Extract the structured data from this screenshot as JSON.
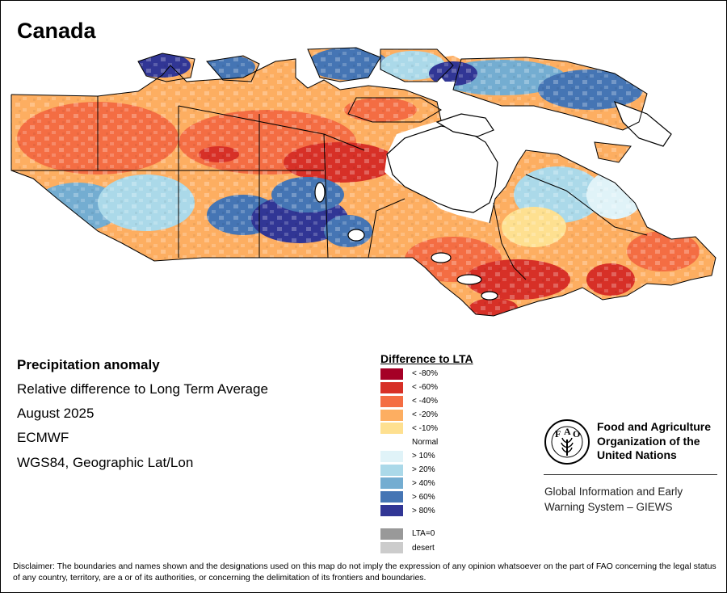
{
  "title": "Canada",
  "info": {
    "heading": "Precipitation anomaly",
    "subtitle": "Relative difference to Long Term Average",
    "date": "August 2025",
    "model": "ECMWF",
    "projection": "WGS84, Geographic Lat/Lon"
  },
  "legend": {
    "title": "Difference to LTA",
    "items": [
      {
        "label": "< -80%",
        "color": "#a50026"
      },
      {
        "label": "< -60%",
        "color": "#d73027"
      },
      {
        "label": "< -40%",
        "color": "#f46d43"
      },
      {
        "label": "< -20%",
        "color": "#fdae61"
      },
      {
        "label": "< -10%",
        "color": "#fee090"
      },
      {
        "label": "Normal",
        "color": "#ffffff"
      },
      {
        "label": "> 10%",
        "color": "#e0f3f8"
      },
      {
        "label": "> 20%",
        "color": "#abd9e9"
      },
      {
        "label": "> 40%",
        "color": "#74add1"
      },
      {
        "label": "> 60%",
        "color": "#4575b4"
      },
      {
        "label": "> 80%",
        "color": "#313695"
      },
      {
        "label": "LTA=0",
        "color": "#999999"
      },
      {
        "label": "desert",
        "color": "#cccccc"
      }
    ]
  },
  "fao": {
    "emblem_text": [
      "F",
      "A",
      "O"
    ],
    "name_lines": [
      "Food and Agriculture",
      "Organization of the",
      "United Nations"
    ],
    "giews_lines": [
      "Global Information and Early",
      "Warning System – GIEWS"
    ]
  },
  "disclaimer": "Disclaimer: The boundaries and names shown and the designations used on this map do not imply the expression of any opinion whatsoever on the part of FAO concerning the legal status of any country, territory, are a or of its authorities, or concerning the delimitation of its frontiers and boundaries."
}
